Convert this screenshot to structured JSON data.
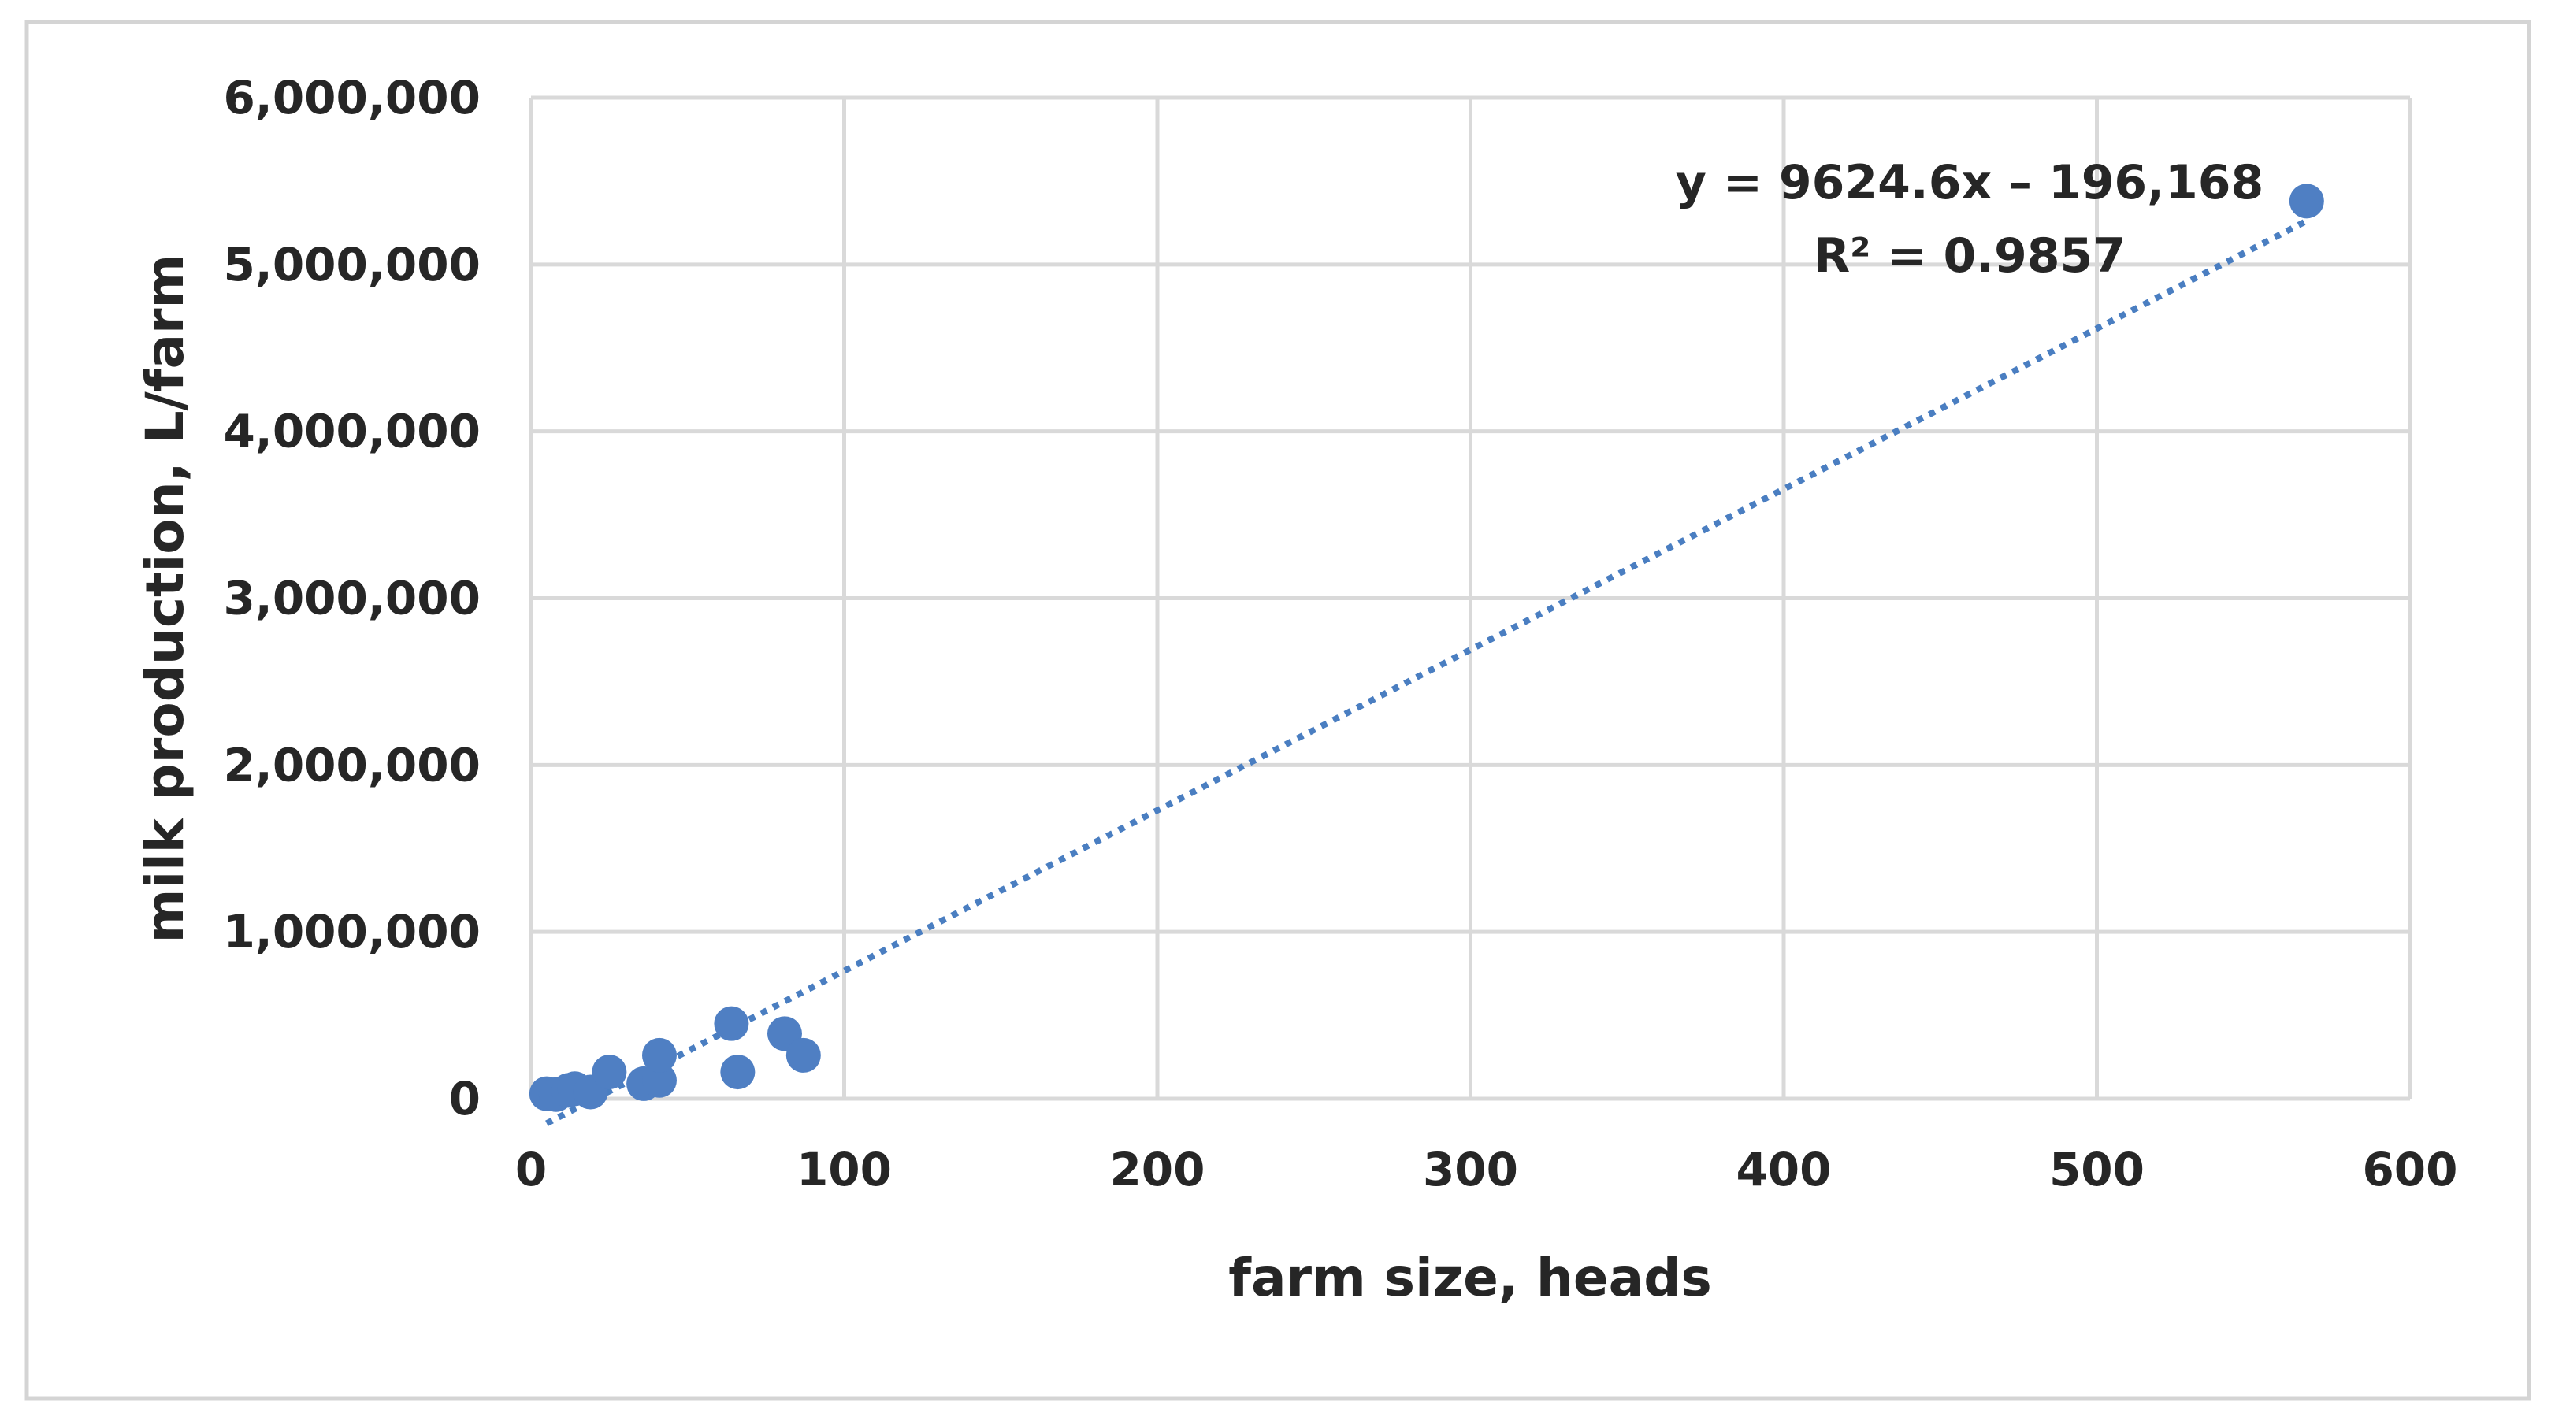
{
  "chart_data": {
    "type": "scatter",
    "xlabel": "farm size, heads",
    "ylabel": "milk production, L/farm",
    "xlim": [
      0,
      600
    ],
    "ylim": [
      0,
      6000000
    ],
    "x_ticks": [
      "0",
      "100",
      "200",
      "300",
      "400",
      "500",
      "600"
    ],
    "y_ticks": [
      "0",
      "1,000,000",
      "2,000,000",
      "3,000,000",
      "4,000,000",
      "5,000,000",
      "6,000,000"
    ],
    "grid": true,
    "legend": "none",
    "marker_color": "#4f7fc3",
    "trendline_color": "#4a7ec1",
    "series": [
      {
        "points": [
          {
            "x": 5,
            "y": 30000
          },
          {
            "x": 8,
            "y": 25000
          },
          {
            "x": 12,
            "y": 50000
          },
          {
            "x": 14,
            "y": 60000
          },
          {
            "x": 19,
            "y": 40000
          },
          {
            "x": 25,
            "y": 160000
          },
          {
            "x": 36,
            "y": 90000
          },
          {
            "x": 41,
            "y": 110000
          },
          {
            "x": 41,
            "y": 260000
          },
          {
            "x": 64,
            "y": 450000
          },
          {
            "x": 66,
            "y": 160000
          },
          {
            "x": 81,
            "y": 390000
          },
          {
            "x": 87,
            "y": 260000
          },
          {
            "x": 567,
            "y": 5380000
          }
        ]
      }
    ],
    "trendline": {
      "type": "linear",
      "style": "dotted",
      "slope": 9624.6,
      "intercept": -196168,
      "x_range": [
        5,
        567
      ],
      "equation_label": "y = 9624.6x – 196,168",
      "r2_label": "R² = 0.9857"
    }
  }
}
